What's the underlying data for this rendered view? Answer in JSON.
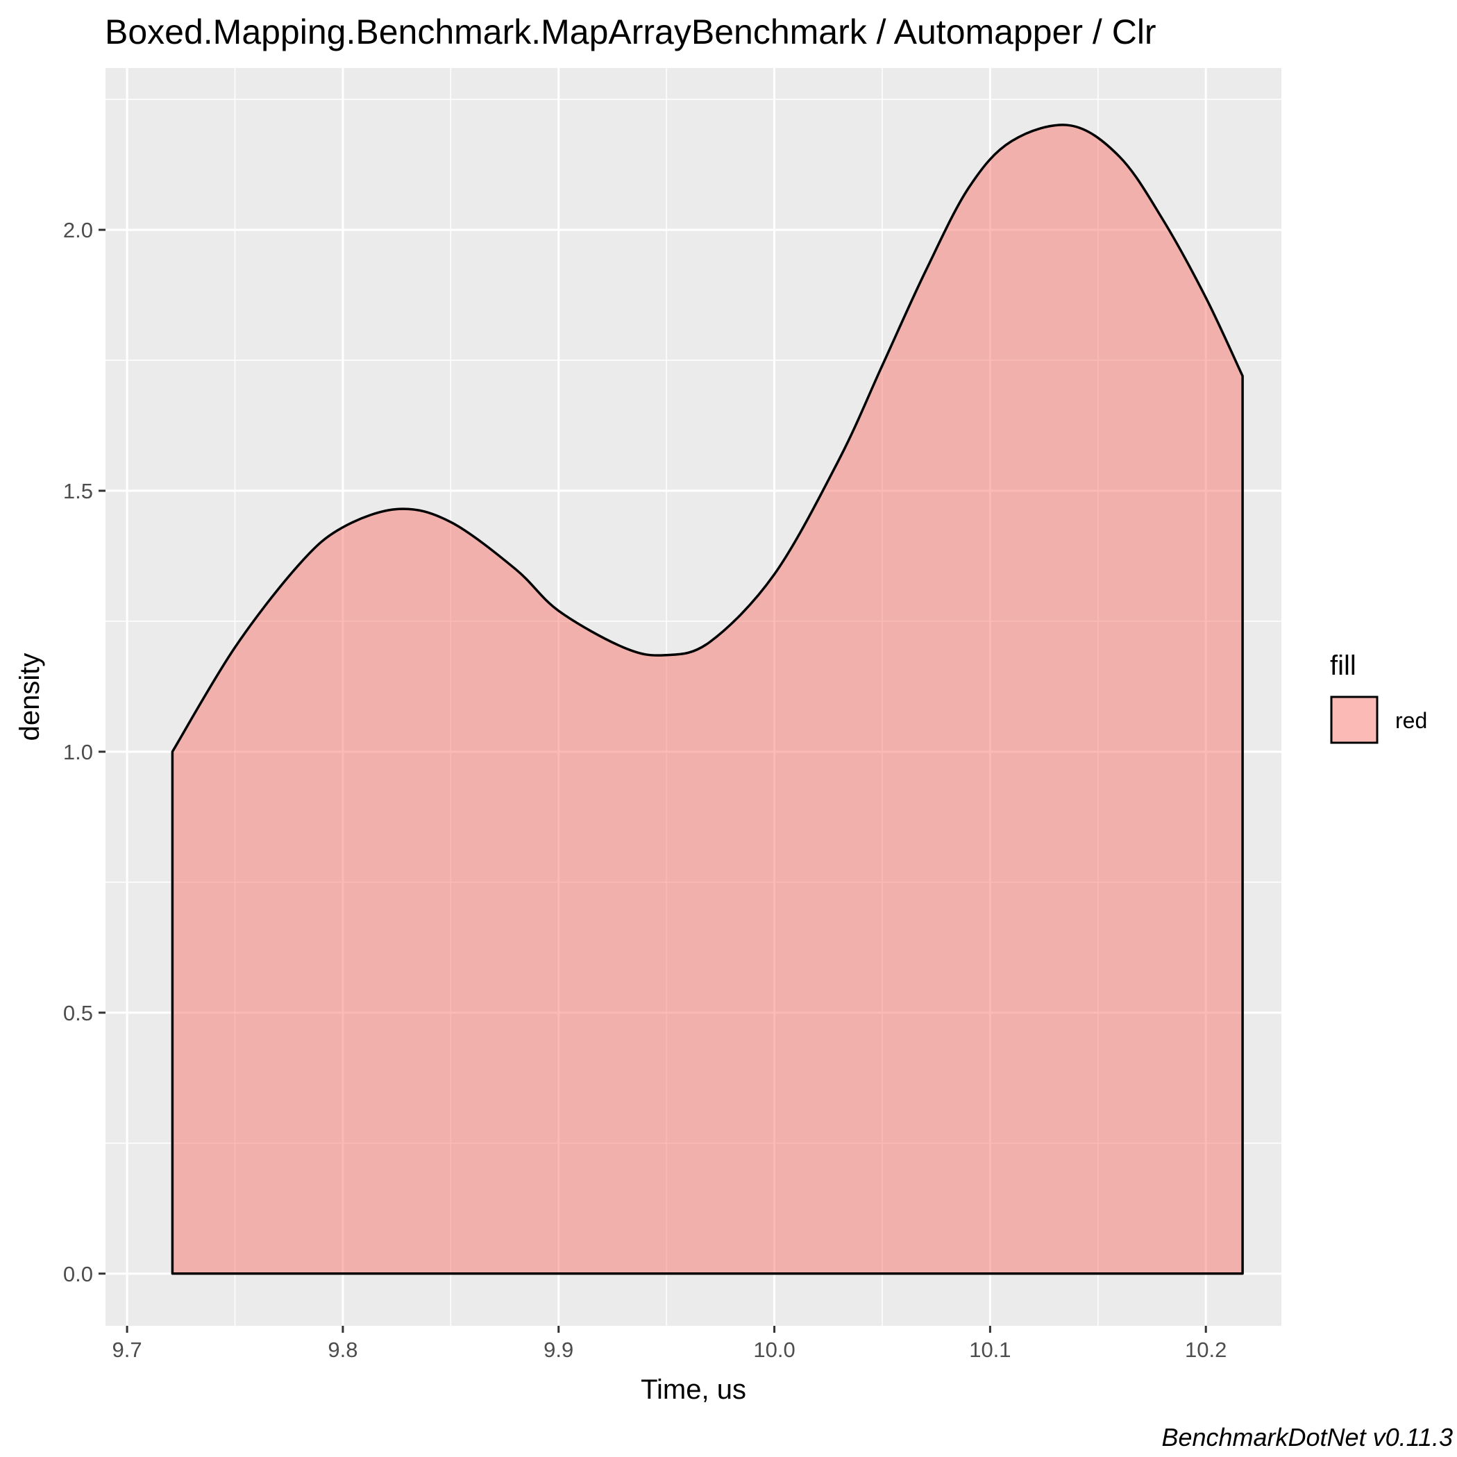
{
  "chart_data": {
    "type": "area",
    "title": "Boxed.Mapping.Benchmark.MapArrayBenchmark / Automapper / Clr",
    "xlabel": "Time, us",
    "ylabel": "density",
    "xlim": [
      9.69,
      10.235
    ],
    "ylim": [
      -0.1,
      2.31
    ],
    "x_ticks": [
      "9.7",
      "9.8",
      "9.9",
      "10.0",
      "10.1",
      "10.2"
    ],
    "y_ticks": [
      "0.0",
      "0.5",
      "1.0",
      "1.5",
      "2.0"
    ],
    "grid": true,
    "legend": {
      "title": "fill",
      "position": "right",
      "entries": [
        {
          "label": "red",
          "color": "#F8766D"
        }
      ]
    },
    "series": [
      {
        "fill": "#F8766D",
        "x": [
          9.721,
          9.75,
          9.78,
          9.8,
          9.826,
          9.85,
          9.88,
          9.9,
          9.93,
          9.949,
          9.97,
          10.0,
          10.03,
          10.05,
          10.07,
          10.09,
          10.11,
          10.137,
          10.16,
          10.18,
          10.2,
          10.217
        ],
        "y": [
          1.0,
          1.2,
          1.36,
          1.43,
          1.465,
          1.44,
          1.35,
          1.27,
          1.2,
          1.185,
          1.21,
          1.34,
          1.56,
          1.74,
          1.92,
          2.08,
          2.17,
          2.2,
          2.14,
          2.02,
          1.87,
          1.72
        ]
      }
    ],
    "caption": "BenchmarkDotNet v0.11.3"
  },
  "colors": {
    "panel_background": "#EBEBEB",
    "grid_line": "#FFFFFF",
    "density_fill": "#F8766D",
    "outline": "#000000"
  }
}
